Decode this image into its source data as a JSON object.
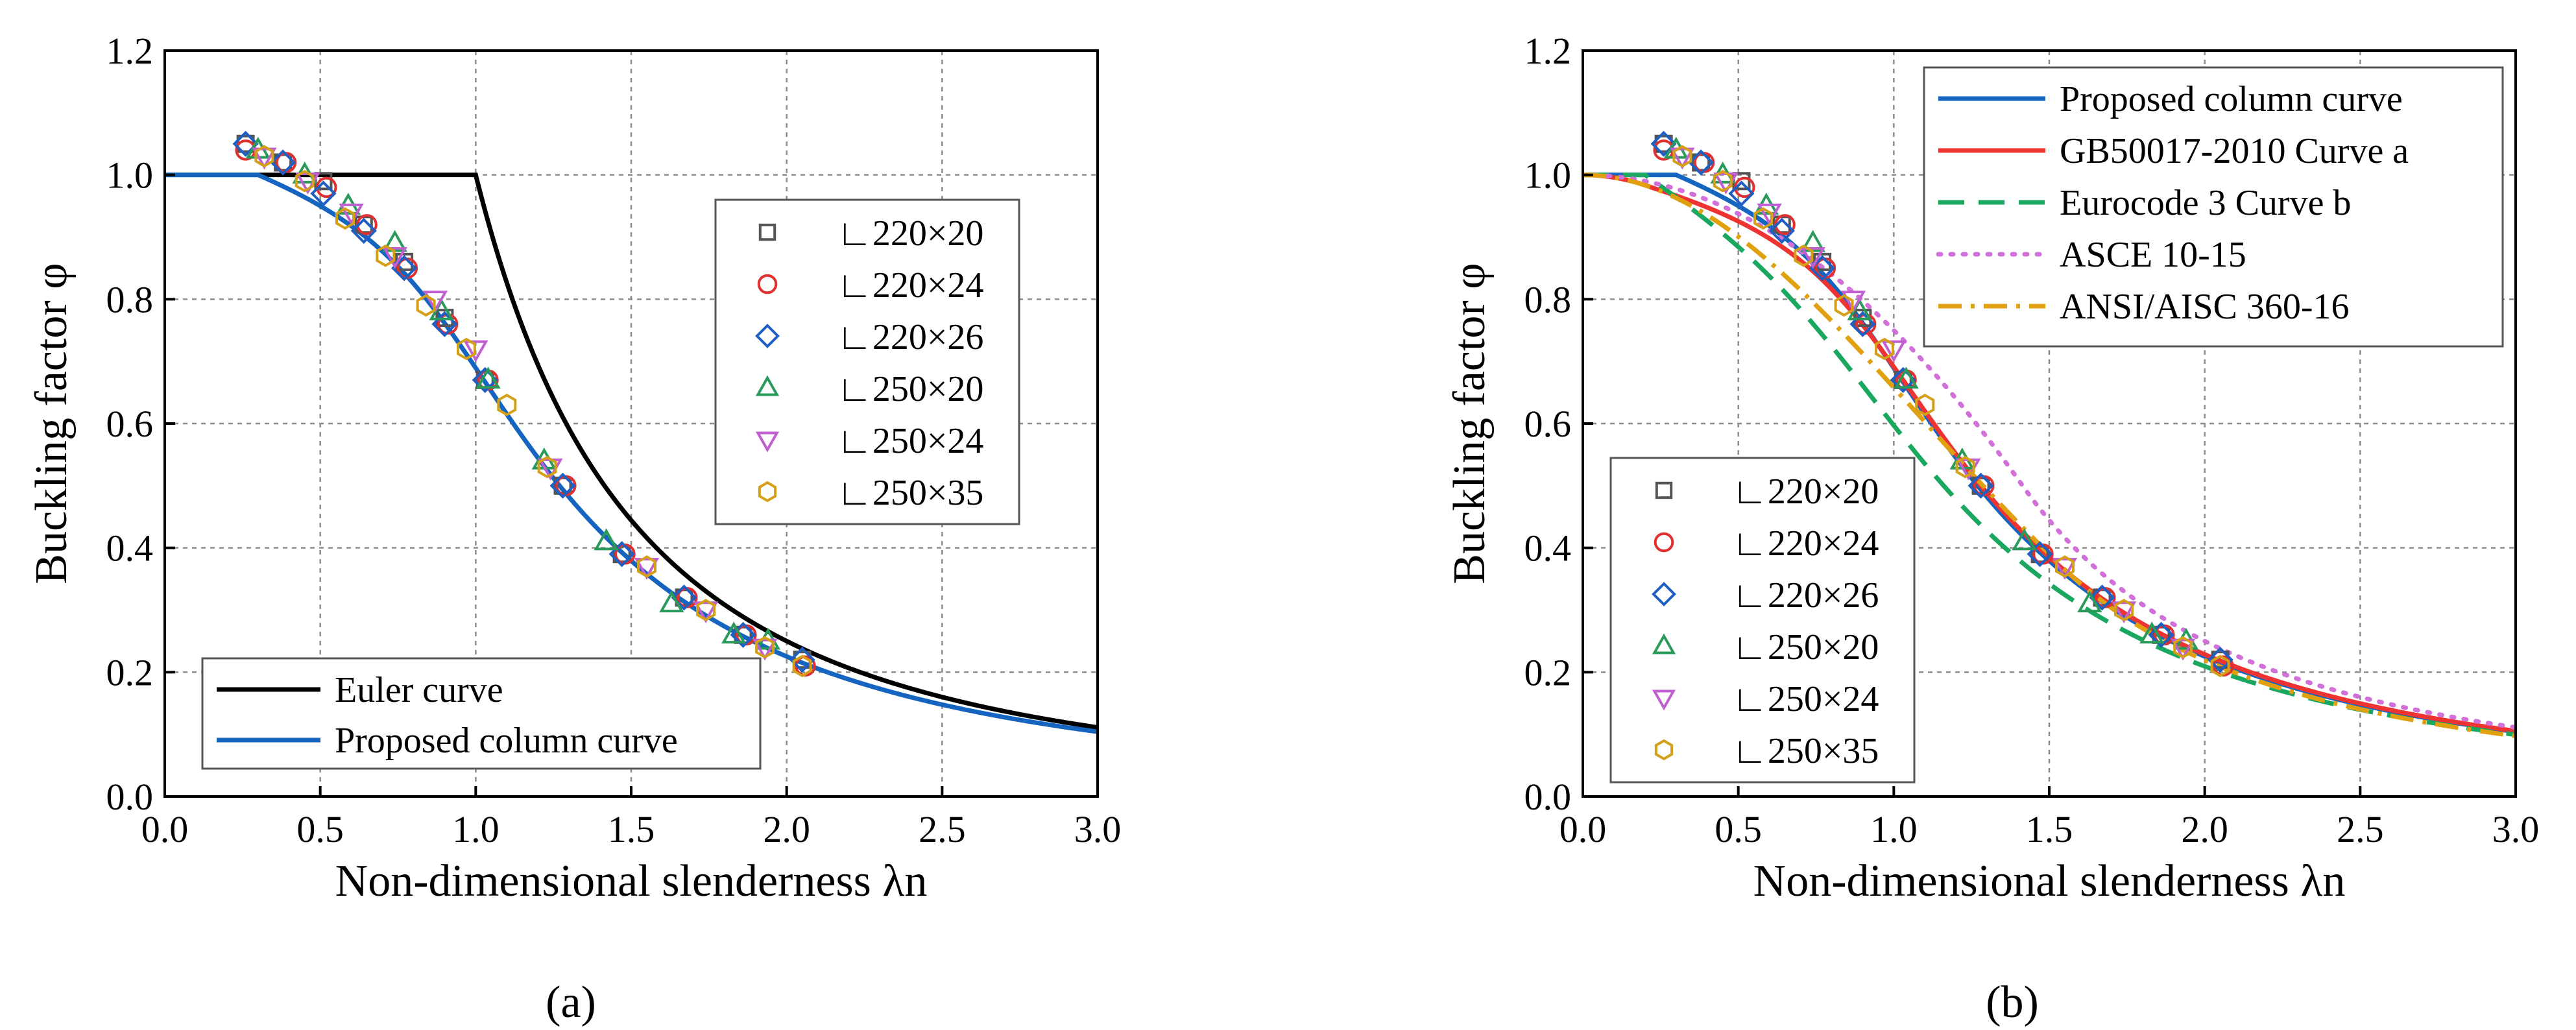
{
  "chart_data": [
    {
      "panel": "(a)",
      "type": "line",
      "xlabel": "Non-dimensional slenderness λn",
      "ylabel": "Buckling factor φ",
      "xlim": [
        0,
        3.0
      ],
      "ylim": [
        0,
        1.2
      ],
      "xticks": [
        "0.0",
        "0.5",
        "1.0",
        "1.5",
        "2.0",
        "2.5",
        "3.0"
      ],
      "yticks": [
        "0.0",
        "0.2",
        "0.4",
        "0.6",
        "0.8",
        "1.0",
        "1.2"
      ],
      "grid": true,
      "curves": [
        {
          "name": "Euler curve",
          "model": "euler",
          "color": "#000000",
          "dash": ""
        },
        {
          "name": "Proposed column curve",
          "model": "proposed",
          "color": "#1565c0",
          "dash": ""
        }
      ],
      "curve_legend_position": "bottom-left",
      "series": [
        {
          "name": "∟220×20",
          "marker": "square",
          "color": "#555555",
          "x": [
            0.26,
            0.38,
            0.51,
            0.64,
            0.77,
            0.9,
            1.03,
            1.28,
            1.47,
            1.67,
            1.86,
            2.05
          ],
          "y": [
            1.05,
            1.02,
            0.99,
            0.92,
            0.86,
            0.77,
            0.67,
            0.5,
            0.39,
            0.32,
            0.26,
            0.22
          ]
        },
        {
          "name": "∟220×24",
          "marker": "circle",
          "color": "#e03030",
          "x": [
            0.26,
            0.39,
            0.52,
            0.65,
            0.78,
            0.91,
            1.04,
            1.29,
            1.48,
            1.68,
            1.87,
            2.06
          ],
          "y": [
            1.04,
            1.02,
            0.98,
            0.92,
            0.85,
            0.76,
            0.67,
            0.5,
            0.39,
            0.32,
            0.26,
            0.21
          ]
        },
        {
          "name": "∟220×26",
          "marker": "diamond",
          "color": "#1f5fc4",
          "x": [
            0.26,
            0.38,
            0.51,
            0.64,
            0.77,
            0.9,
            1.03,
            1.28,
            1.47,
            1.67,
            1.86,
            2.05
          ],
          "y": [
            1.05,
            1.02,
            0.97,
            0.91,
            0.85,
            0.76,
            0.67,
            0.5,
            0.39,
            0.32,
            0.26,
            0.22
          ]
        },
        {
          "name": "∟250×20",
          "marker": "triangle-up",
          "color": "#2a9a5a",
          "x": [
            0.3,
            0.45,
            0.59,
            0.74,
            0.89,
            1.04,
            1.22,
            1.42,
            1.63,
            1.83,
            1.94
          ],
          "y": [
            1.04,
            1.0,
            0.95,
            0.89,
            0.78,
            0.67,
            0.54,
            0.41,
            0.31,
            0.26,
            0.25
          ]
        },
        {
          "name": "∟250×24",
          "marker": "triangle-down",
          "color": "#c060d0",
          "x": [
            0.32,
            0.46,
            0.6,
            0.74,
            0.87,
            1.0,
            1.24,
            1.55,
            1.74,
            1.93
          ],
          "y": [
            1.03,
            0.99,
            0.94,
            0.87,
            0.8,
            0.72,
            0.53,
            0.37,
            0.3,
            0.24
          ]
        },
        {
          "name": "∟250×35",
          "marker": "hexagon",
          "color": "#d4a017",
          "x": [
            0.32,
            0.45,
            0.58,
            0.71,
            0.84,
            0.97,
            1.1,
            1.23,
            1.55,
            1.74,
            1.93,
            2.05
          ],
          "y": [
            1.03,
            0.99,
            0.93,
            0.87,
            0.79,
            0.72,
            0.63,
            0.53,
            0.37,
            0.3,
            0.24,
            0.21
          ]
        }
      ],
      "marker_legend_position": "top-right"
    },
    {
      "panel": "(b)",
      "type": "line",
      "xlabel": "Non-dimensional slenderness λn",
      "ylabel": "Buckling factor φ",
      "xlim": [
        0,
        3.0
      ],
      "ylim": [
        0,
        1.2
      ],
      "xticks": [
        "0.0",
        "0.5",
        "1.0",
        "1.5",
        "2.0",
        "2.5",
        "3.0"
      ],
      "yticks": [
        "0.0",
        "0.2",
        "0.4",
        "0.6",
        "0.8",
        "1.0",
        "1.2"
      ],
      "grid": true,
      "curves": [
        {
          "name": "Proposed column curve",
          "model": "proposed",
          "color": "#1565c0",
          "dash": ""
        },
        {
          "name": "GB50017-2010 Curve a",
          "model": "gb_a",
          "color": "#ee3333",
          "dash": ""
        },
        {
          "name": "Eurocode 3 Curve b",
          "model": "ec3_b",
          "color": "#1aa860",
          "dash": "40 22"
        },
        {
          "name": "ASCE 10-15",
          "model": "asce",
          "color": "#d070d8",
          "dash": "4 15"
        },
        {
          "name": "ANSI/AISC 360-16",
          "model": "aisc",
          "color": "#e0a010",
          "dash": "36 14 6 14"
        }
      ],
      "curve_legend_position": "top-right",
      "series": [
        {
          "name": "∟220×20",
          "marker": "square",
          "color": "#555555",
          "x": [
            0.26,
            0.38,
            0.51,
            0.64,
            0.77,
            0.9,
            1.03,
            1.28,
            1.47,
            1.67,
            1.86,
            2.05
          ],
          "y": [
            1.05,
            1.02,
            0.99,
            0.92,
            0.86,
            0.77,
            0.67,
            0.5,
            0.39,
            0.32,
            0.26,
            0.22
          ]
        },
        {
          "name": "∟220×24",
          "marker": "circle",
          "color": "#e03030",
          "x": [
            0.26,
            0.39,
            0.52,
            0.65,
            0.78,
            0.91,
            1.04,
            1.29,
            1.48,
            1.68,
            1.87,
            2.06
          ],
          "y": [
            1.04,
            1.02,
            0.98,
            0.92,
            0.85,
            0.76,
            0.67,
            0.5,
            0.39,
            0.32,
            0.26,
            0.21
          ]
        },
        {
          "name": "∟220×26",
          "marker": "diamond",
          "color": "#1f5fc4",
          "x": [
            0.26,
            0.38,
            0.51,
            0.64,
            0.77,
            0.9,
            1.03,
            1.28,
            1.47,
            1.67,
            1.86,
            2.05
          ],
          "y": [
            1.05,
            1.02,
            0.97,
            0.91,
            0.85,
            0.76,
            0.67,
            0.5,
            0.39,
            0.32,
            0.26,
            0.22
          ]
        },
        {
          "name": "∟250×20",
          "marker": "triangle-up",
          "color": "#2a9a5a",
          "x": [
            0.3,
            0.45,
            0.59,
            0.74,
            0.89,
            1.04,
            1.22,
            1.42,
            1.63,
            1.83,
            1.94
          ],
          "y": [
            1.04,
            1.0,
            0.95,
            0.89,
            0.78,
            0.67,
            0.54,
            0.41,
            0.31,
            0.26,
            0.25
          ]
        },
        {
          "name": "∟250×24",
          "marker": "triangle-down",
          "color": "#c060d0",
          "x": [
            0.32,
            0.46,
            0.6,
            0.74,
            0.87,
            1.0,
            1.24,
            1.55,
            1.74,
            1.93
          ],
          "y": [
            1.03,
            0.99,
            0.94,
            0.87,
            0.8,
            0.72,
            0.53,
            0.37,
            0.3,
            0.24
          ]
        },
        {
          "name": "∟250×35",
          "marker": "hexagon",
          "color": "#d4a017",
          "x": [
            0.32,
            0.45,
            0.58,
            0.71,
            0.84,
            0.97,
            1.1,
            1.23,
            1.55,
            1.74,
            1.93,
            2.05
          ],
          "y": [
            1.03,
            0.99,
            0.93,
            0.87,
            0.79,
            0.72,
            0.63,
            0.53,
            0.37,
            0.3,
            0.24,
            0.21
          ]
        }
      ],
      "marker_legend_position": "bottom-left"
    }
  ]
}
